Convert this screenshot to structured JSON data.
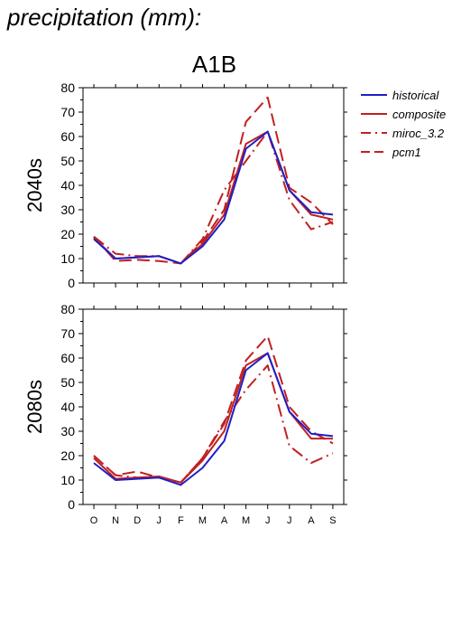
{
  "title": "precipitation (mm):",
  "scenario": "A1B",
  "colors": {
    "historical": "#1f1fc8",
    "projection": "#c02020"
  },
  "chart_data": [
    {
      "type": "line",
      "panel_label": "2040s",
      "categories": [
        "O",
        "N",
        "D",
        "J",
        "F",
        "M",
        "A",
        "M",
        "J",
        "J",
        "A",
        "S"
      ],
      "ylim": [
        0,
        80
      ],
      "yticks": [
        0,
        10,
        20,
        30,
        40,
        50,
        60,
        70,
        80
      ],
      "grid": false,
      "legend": "right",
      "series": [
        {
          "name": "historical",
          "style": "solid",
          "color": "#1f1fc8",
          "values": [
            18,
            10,
            10.5,
            11,
            8,
            15,
            26,
            55,
            62,
            38,
            29,
            28
          ]
        },
        {
          "name": "composite",
          "style": "solid",
          "color": "#c02020",
          "values": [
            18.5,
            10,
            10.5,
            11,
            8,
            16,
            28,
            57,
            62,
            38,
            28,
            26
          ]
        },
        {
          "name": "miroc_3.2",
          "style": "dashdot",
          "color": "#c02020",
          "values": [
            19,
            12,
            11,
            11,
            8,
            18,
            38,
            50,
            62,
            34,
            22,
            25
          ]
        },
        {
          "name": "pcm1",
          "style": "dashed",
          "color": "#c02020",
          "values": [
            19,
            9,
            9.5,
            9,
            8,
            17,
            30,
            66,
            76,
            39,
            33,
            24
          ]
        }
      ]
    },
    {
      "type": "line",
      "panel_label": "2080s",
      "categories": [
        "O",
        "N",
        "D",
        "J",
        "F",
        "M",
        "A",
        "M",
        "J",
        "J",
        "A",
        "S"
      ],
      "ylim": [
        0,
        80
      ],
      "yticks": [
        0,
        10,
        20,
        30,
        40,
        50,
        60,
        70,
        80
      ],
      "grid": false,
      "series": [
        {
          "name": "historical",
          "style": "solid",
          "color": "#1f1fc8",
          "values": [
            17,
            10,
            10.5,
            11,
            8,
            15,
            26,
            55,
            62,
            38,
            29,
            28
          ]
        },
        {
          "name": "composite",
          "style": "solid",
          "color": "#c02020",
          "values": [
            19,
            10.5,
            11,
            11.5,
            9,
            18,
            30,
            57,
            62,
            38,
            27,
            27
          ]
        },
        {
          "name": "miroc_3.2",
          "style": "dashdot",
          "color": "#c02020",
          "values": [
            20,
            12,
            11,
            11,
            9,
            19,
            34,
            47,
            57,
            24,
            17,
            21
          ]
        },
        {
          "name": "pcm1",
          "style": "dashed",
          "color": "#c02020",
          "values": [
            20,
            12,
            13.5,
            11,
            9,
            19,
            33,
            59,
            69,
            40,
            30,
            25
          ]
        }
      ]
    }
  ]
}
